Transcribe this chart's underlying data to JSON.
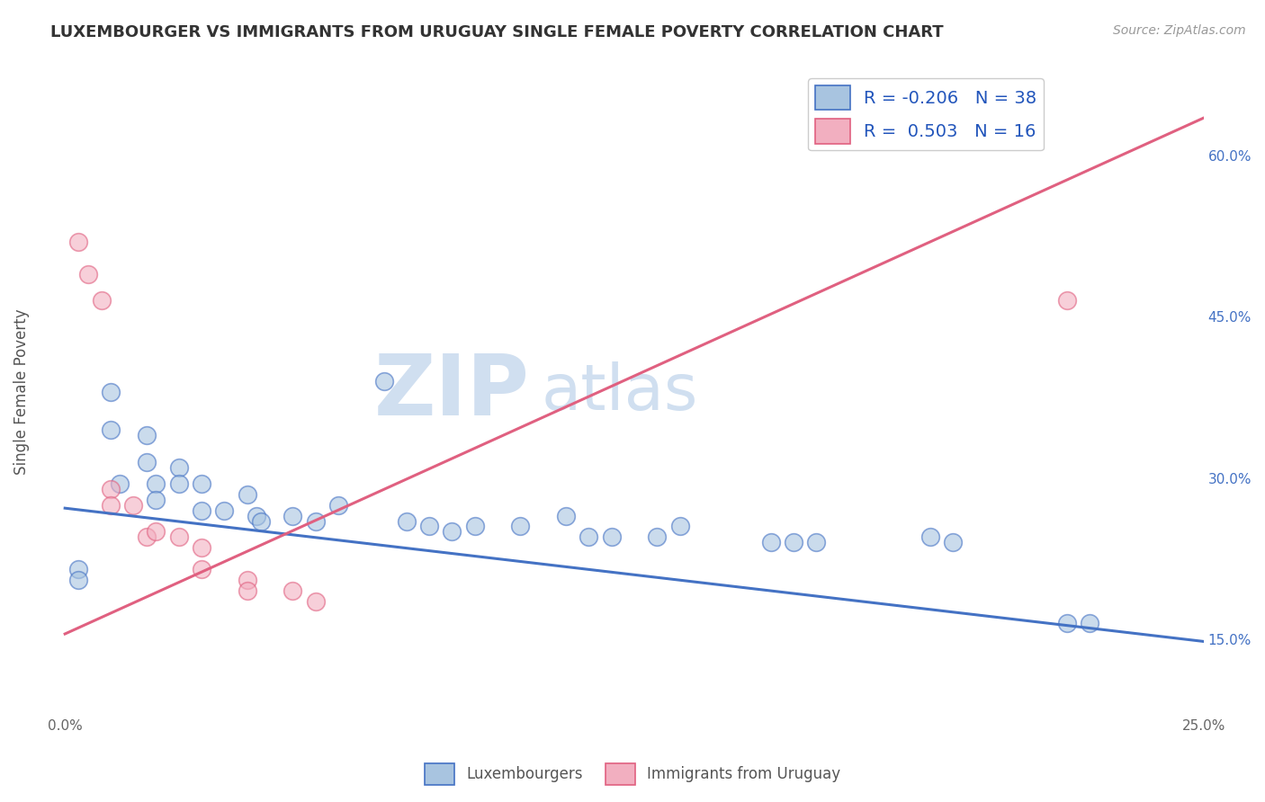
{
  "title": "LUXEMBOURGER VS IMMIGRANTS FROM URUGUAY SINGLE FEMALE POVERTY CORRELATION CHART",
  "source": "Source: ZipAtlas.com",
  "ylabel": "Single Female Poverty",
  "xlim": [
    0.0,
    0.25
  ],
  "ylim": [
    0.08,
    0.68
  ],
  "xtick_positions": [
    0.0,
    0.05,
    0.1,
    0.15,
    0.2,
    0.25
  ],
  "xtick_labels": [
    "0.0%",
    "",
    "",
    "",
    "",
    "25.0%"
  ],
  "ytick_vals_right": [
    0.15,
    0.3,
    0.45,
    0.6
  ],
  "ytick_labels_right": [
    "15.0%",
    "30.0%",
    "45.0%",
    "60.0%"
  ],
  "blue_R": -0.206,
  "blue_N": 38,
  "pink_R": 0.503,
  "pink_N": 16,
  "blue_color": "#a8c4e0",
  "pink_color": "#f2afc0",
  "blue_line_color": "#4472c4",
  "pink_line_color": "#e06080",
  "blue_line_y0": 0.272,
  "blue_line_y1": 0.148,
  "pink_line_y0": 0.155,
  "pink_line_y1": 0.635,
  "blue_scatter": [
    [
      0.003,
      0.215
    ],
    [
      0.003,
      0.205
    ],
    [
      0.01,
      0.38
    ],
    [
      0.01,
      0.345
    ],
    [
      0.012,
      0.295
    ],
    [
      0.018,
      0.34
    ],
    [
      0.018,
      0.315
    ],
    [
      0.02,
      0.295
    ],
    [
      0.02,
      0.28
    ],
    [
      0.025,
      0.31
    ],
    [
      0.025,
      0.295
    ],
    [
      0.03,
      0.295
    ],
    [
      0.03,
      0.27
    ],
    [
      0.035,
      0.27
    ],
    [
      0.04,
      0.285
    ],
    [
      0.042,
      0.265
    ],
    [
      0.043,
      0.26
    ],
    [
      0.05,
      0.265
    ],
    [
      0.055,
      0.26
    ],
    [
      0.06,
      0.275
    ],
    [
      0.07,
      0.39
    ],
    [
      0.075,
      0.26
    ],
    [
      0.08,
      0.255
    ],
    [
      0.085,
      0.25
    ],
    [
      0.09,
      0.255
    ],
    [
      0.1,
      0.255
    ],
    [
      0.11,
      0.265
    ],
    [
      0.115,
      0.245
    ],
    [
      0.12,
      0.245
    ],
    [
      0.13,
      0.245
    ],
    [
      0.135,
      0.255
    ],
    [
      0.155,
      0.24
    ],
    [
      0.16,
      0.24
    ],
    [
      0.165,
      0.24
    ],
    [
      0.19,
      0.245
    ],
    [
      0.195,
      0.24
    ],
    [
      0.22,
      0.165
    ],
    [
      0.225,
      0.165
    ]
  ],
  "pink_scatter": [
    [
      0.003,
      0.52
    ],
    [
      0.005,
      0.49
    ],
    [
      0.008,
      0.465
    ],
    [
      0.01,
      0.29
    ],
    [
      0.01,
      0.275
    ],
    [
      0.015,
      0.275
    ],
    [
      0.018,
      0.245
    ],
    [
      0.02,
      0.25
    ],
    [
      0.025,
      0.245
    ],
    [
      0.03,
      0.235
    ],
    [
      0.03,
      0.215
    ],
    [
      0.04,
      0.205
    ],
    [
      0.04,
      0.195
    ],
    [
      0.05,
      0.195
    ],
    [
      0.055,
      0.185
    ],
    [
      0.22,
      0.465
    ]
  ],
  "watermark_zip": "ZIP",
  "watermark_atlas": "atlas",
  "watermark_color": "#d0dff0",
  "legend_blue_label": "Luxembourgers",
  "legend_pink_label": "Immigrants from Uruguay",
  "grid_color": "#cccccc",
  "background_color": "#ffffff",
  "scatter_size": 200,
  "scatter_alpha": 0.6,
  "scatter_linewidth": 1.2
}
